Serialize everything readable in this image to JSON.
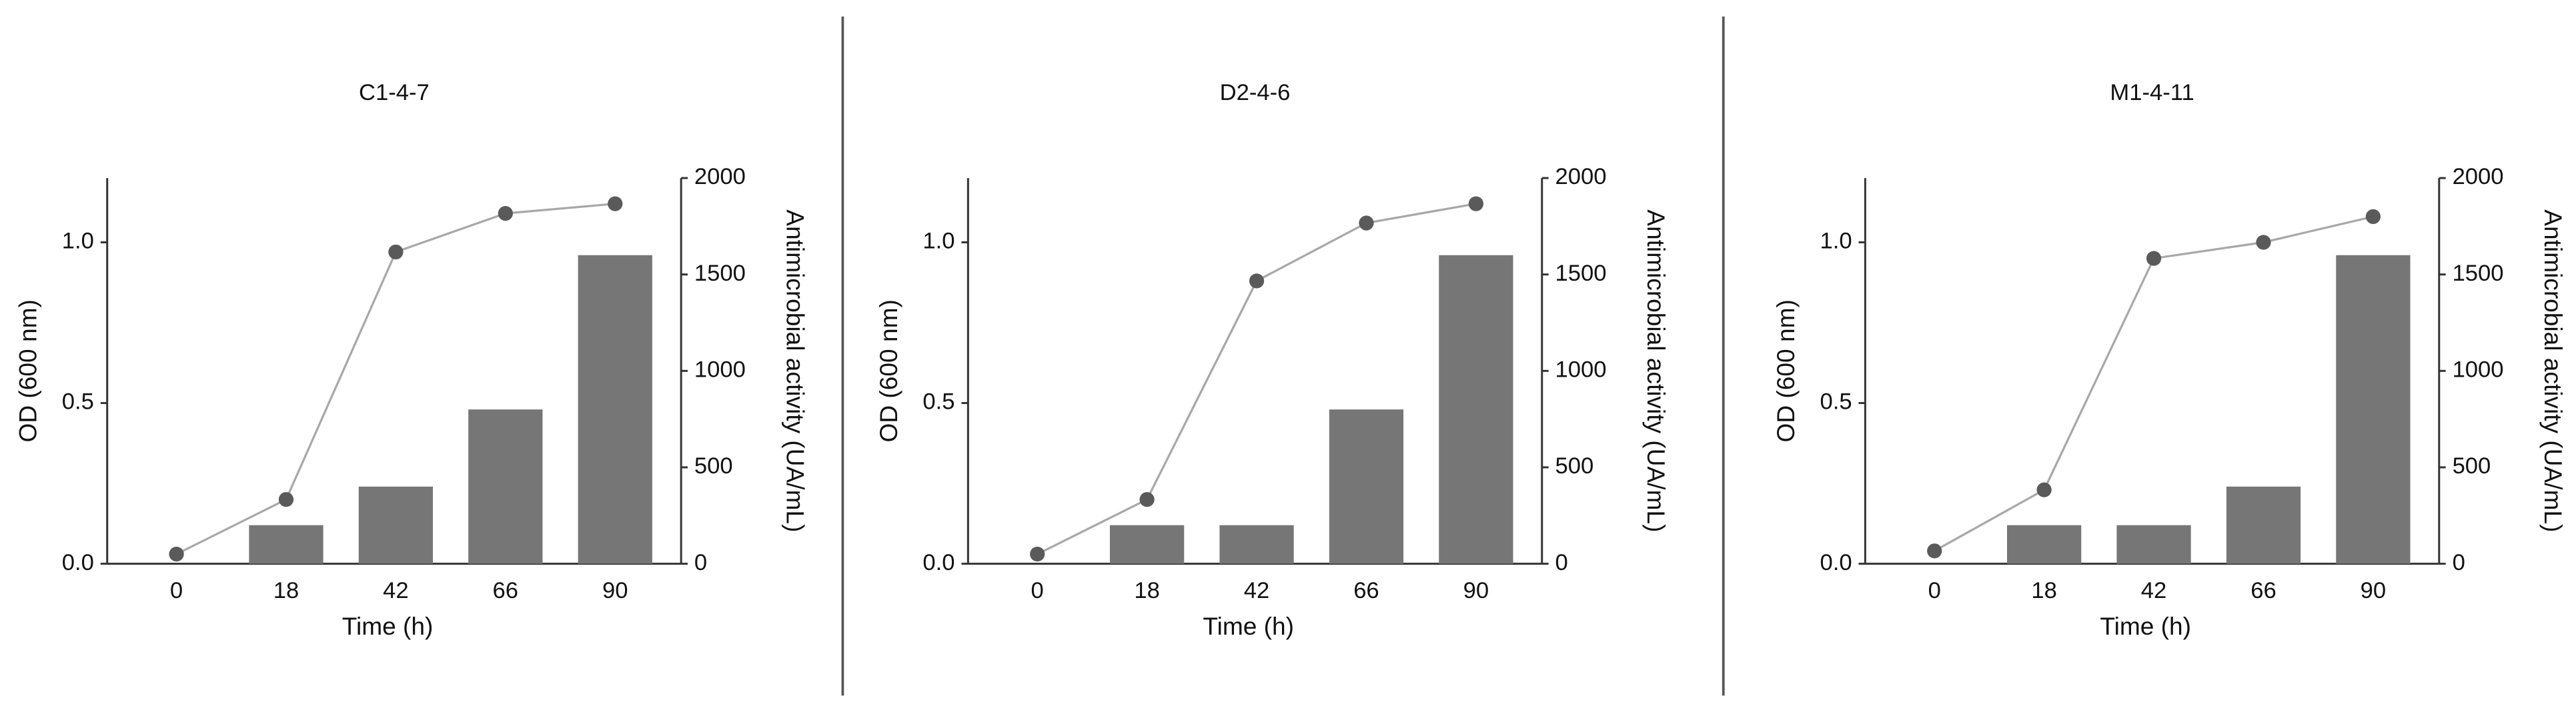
{
  "chart_data": [
    {
      "type": "combo",
      "title": "C1-4-7",
      "xlabel": "Time (h)",
      "ylabel": "OD (600 nm)",
      "y2label": "Antimicrobial activity (UA/mL)",
      "categories": [
        "0",
        "18",
        "42",
        "66",
        "90"
      ],
      "series": [
        {
          "type": "bar",
          "axis": "y2",
          "color": "#767676",
          "values": [
            0,
            200,
            400,
            800,
            1600
          ]
        },
        {
          "type": "line",
          "color": "#a8a8a8",
          "marker_color": "#5a5a5a",
          "values": [
            0.03,
            0.2,
            0.97,
            1.09,
            1.12
          ]
        }
      ],
      "ylim": [
        0,
        1.2
      ],
      "yticks": [
        {
          "value": 0,
          "label": "0.0"
        },
        {
          "value": 0.5,
          "label": "0.5"
        },
        {
          "value": 1,
          "label": "1.0"
        }
      ],
      "y2lim": [
        0,
        2000
      ],
      "y2ticks": [
        0,
        500,
        1000,
        1500,
        2000
      ]
    },
    {
      "type": "combo",
      "title": "D2-4-6",
      "xlabel": "Time (h)",
      "ylabel": "OD (600 nm)",
      "y2label": "Antimicrobial activity (UA/mL)",
      "categories": [
        "0",
        "18",
        "42",
        "66",
        "90"
      ],
      "series": [
        {
          "type": "bar",
          "axis": "y2",
          "color": "#767676",
          "values": [
            0,
            200,
            200,
            800,
            1600
          ]
        },
        {
          "type": "line",
          "color": "#a8a8a8",
          "marker_color": "#5a5a5a",
          "values": [
            0.03,
            0.2,
            0.88,
            1.06,
            1.12
          ]
        }
      ],
      "ylim": [
        0,
        1.2
      ],
      "yticks": [
        {
          "value": 0,
          "label": "0.0"
        },
        {
          "value": 0.5,
          "label": "0.5"
        },
        {
          "value": 1,
          "label": "1.0"
        }
      ],
      "y2lim": [
        0,
        2000
      ],
      "y2ticks": [
        0,
        500,
        1000,
        1500,
        2000
      ]
    },
    {
      "type": "combo",
      "title": "M1-4-11",
      "xlabel": "Time (h)",
      "ylabel": "OD (600 nm)",
      "y2label": "Antimicrobial activity (UA/mL)",
      "categories": [
        "0",
        "18",
        "42",
        "66",
        "90"
      ],
      "series": [
        {
          "type": "bar",
          "axis": "y2",
          "color": "#767676",
          "values": [
            0,
            200,
            200,
            400,
            1600
          ]
        },
        {
          "type": "line",
          "color": "#a8a8a8",
          "marker_color": "#5a5a5a",
          "values": [
            0.04,
            0.23,
            0.95,
            1.0,
            1.08
          ]
        }
      ],
      "ylim": [
        0,
        1.2
      ],
      "yticks": [
        {
          "value": 0,
          "label": "0.0"
        },
        {
          "value": 0.5,
          "label": "0.5"
        },
        {
          "value": 1,
          "label": "1.0"
        }
      ],
      "y2lim": [
        0,
        2000
      ],
      "y2ticks": [
        0,
        500,
        1000,
        1500,
        2000
      ]
    }
  ]
}
